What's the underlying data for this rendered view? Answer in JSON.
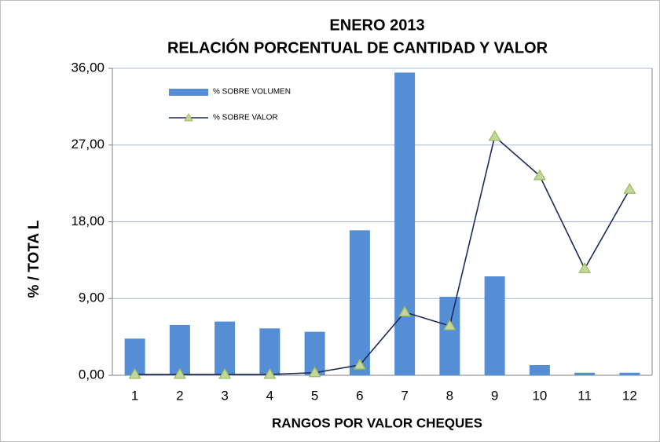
{
  "chart_data": {
    "type": "bar",
    "title": "ENERO 2013",
    "subtitle": "RELACIÓN PORCENTUAL  DE CANTIDAD  Y VALOR",
    "x_label": "RANGOS POR VALOR CHEQUES",
    "y_label": "%  /   TOTA L",
    "categories": [
      "1",
      "2",
      "3",
      "4",
      "5",
      "6",
      "7",
      "8",
      "9",
      "10",
      "11",
      "12"
    ],
    "series": [
      {
        "name": "% SOBRE VOLUMEN",
        "type": "bar",
        "color": "#558ed5",
        "values": [
          4.3,
          5.9,
          6.3,
          5.5,
          5.1,
          17.0,
          35.5,
          9.2,
          11.6,
          1.2,
          0.3,
          0.3
        ]
      },
      {
        "name": "% SOBRE VALOR",
        "type": "line",
        "color": "#1f2a5c",
        "marker_color": "#c3d69b",
        "values": [
          0.1,
          0.1,
          0.1,
          0.1,
          0.3,
          1.2,
          7.4,
          5.8,
          28.0,
          23.4,
          12.5,
          21.8
        ]
      }
    ],
    "ylim": [
      0,
      36
    ],
    "yticks": [
      {
        "value": 0,
        "label": "0,00"
      },
      {
        "value": 9,
        "label": "9,00"
      },
      {
        "value": 18,
        "label": "18,00"
      },
      {
        "value": 27,
        "label": "27,00"
      },
      {
        "value": 36,
        "label": "36,00"
      }
    ],
    "grid": true,
    "legend": "top-left"
  }
}
